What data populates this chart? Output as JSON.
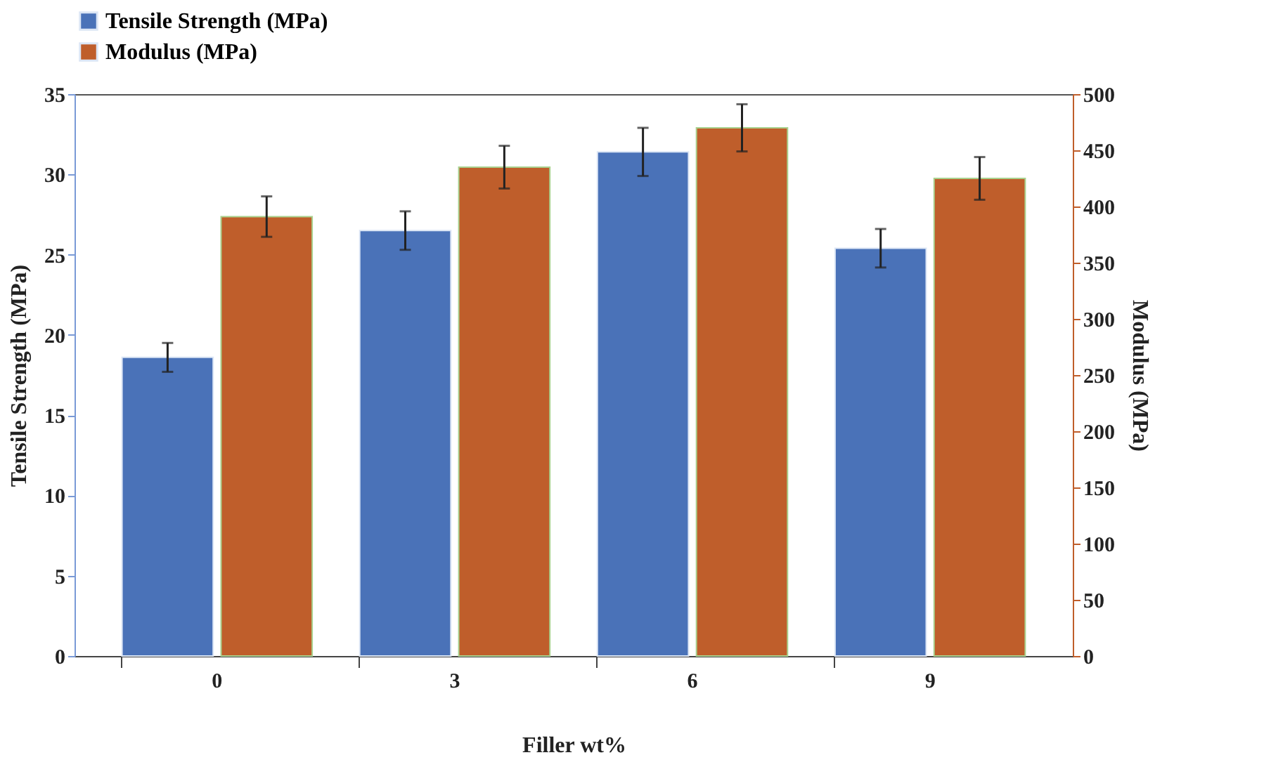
{
  "chart_data": {
    "type": "bar",
    "categories": [
      "0",
      "3",
      "6",
      "9"
    ],
    "xlabel": "Filler wt%",
    "ylabel": "Tensile Strength (MPa)",
    "y2label": "Modulus (MPa)",
    "series": [
      {
        "name": "Tensile Strength (MPa)",
        "color": "#4a72b8",
        "values": [
          18.6,
          26.5,
          31.4,
          25.4
        ],
        "errors": [
          0.9,
          1.2,
          1.5,
          1.2
        ]
      },
      {
        "name": "Modulus (MPa)",
        "color": "#bf5e2b",
        "axis": "y2",
        "values": [
          391,
          435,
          470,
          425
        ],
        "errors": [
          18,
          19,
          21,
          19
        ]
      }
    ],
    "ylim": [
      0,
      35
    ],
    "yticks": [
      0,
      5,
      10,
      15,
      20,
      25,
      30,
      35
    ],
    "y2lim": [
      0,
      500
    ],
    "y2ticks": [
      0,
      50,
      100,
      150,
      200,
      250,
      300,
      350,
      400,
      450,
      500
    ],
    "grid": false,
    "legend": "top"
  }
}
